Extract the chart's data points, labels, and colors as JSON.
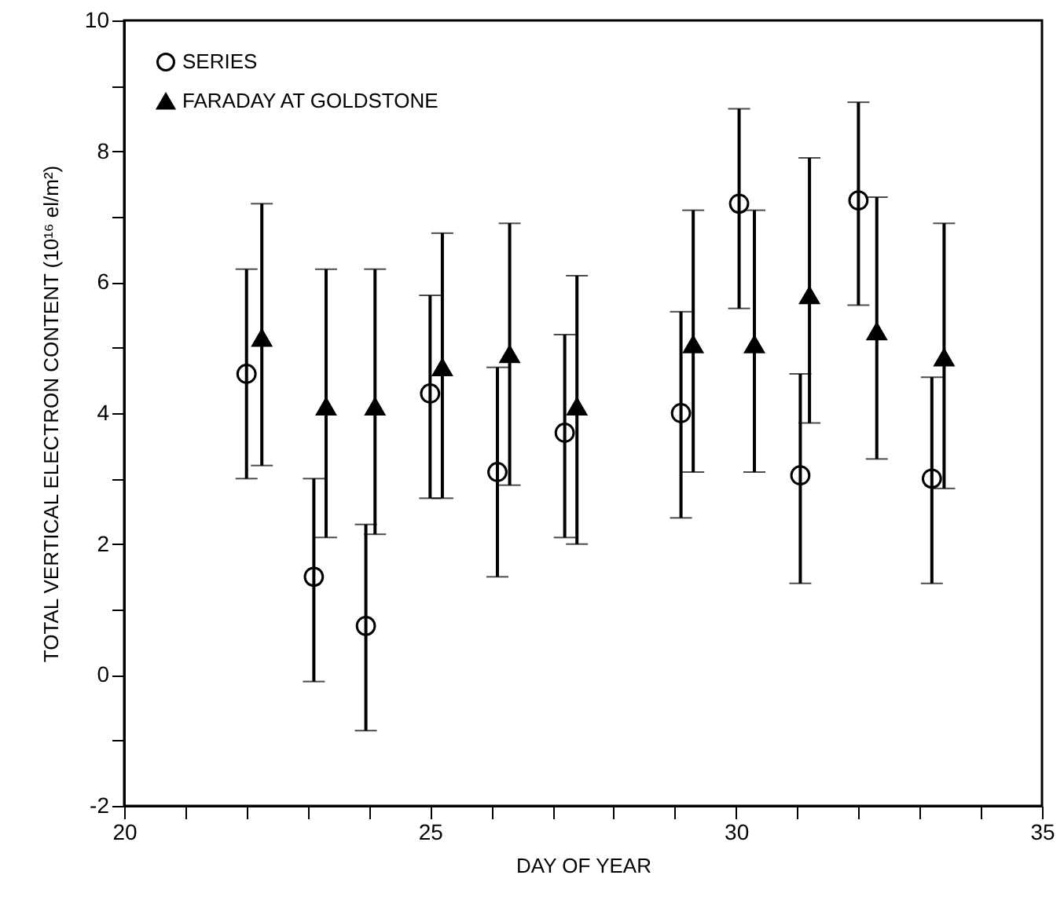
{
  "chart_data": {
    "type": "scatter",
    "xlabel": "DAY OF YEAR",
    "ylabel": "TOTAL VERTICAL ELECTRON CONTENT (10¹⁶ el/m²)",
    "xlim": [
      20,
      35
    ],
    "xticks": [
      20,
      {
        "value": 21,
        "label": null
      },
      {
        "value": 22,
        "label": null
      },
      {
        "value": 23,
        "label": null
      },
      {
        "value": 24,
        "label": null
      },
      25,
      {
        "value": 26,
        "label": null
      },
      {
        "value": 27,
        "label": null
      },
      {
        "value": 28,
        "label": null
      },
      {
        "value": 29,
        "label": null
      },
      30,
      {
        "value": 31,
        "label": null
      },
      {
        "value": 32,
        "label": null
      },
      {
        "value": 33,
        "label": null
      },
      {
        "value": 34,
        "label": null
      },
      35
    ],
    "ylim": [
      -2,
      10
    ],
    "yticks": [
      -2,
      {
        "value": -1,
        "label": null
      },
      0,
      {
        "value": 1,
        "label": null
      },
      2,
      {
        "value": 3,
        "label": null
      },
      4,
      {
        "value": 5,
        "label": null
      },
      6,
      {
        "value": 7,
        "label": null
      },
      8,
      {
        "value": 9,
        "label": null
      },
      10
    ],
    "grid": false,
    "legend": "top left",
    "series": [
      {
        "name": "SERIES",
        "color": "#000000",
        "marker": "circle",
        "x": [
          22.0,
          23.1,
          23.95,
          25.0,
          26.1,
          27.2,
          29.1,
          30.05,
          31.05,
          32.0,
          33.2
        ],
        "values": [
          4.6,
          1.5,
          0.75,
          4.3,
          3.1,
          3.7,
          4.0,
          7.2,
          3.05,
          7.25,
          3.0
        ],
        "errors": [
          [
            3.0,
            6.2
          ],
          [
            -0.1,
            3.0
          ],
          [
            -0.85,
            2.3
          ],
          [
            2.7,
            5.8
          ],
          [
            1.5,
            4.7
          ],
          [
            2.1,
            5.2
          ],
          [
            2.4,
            5.55
          ],
          [
            5.6,
            8.65
          ],
          [
            1.4,
            4.6
          ],
          [
            5.65,
            8.75
          ],
          [
            1.4,
            4.55
          ]
        ]
      },
      {
        "name": "FARADAY AT GOLDSTONE",
        "color": "#000000",
        "marker": "triangle",
        "x": [
          22.25,
          23.3,
          24.1,
          25.2,
          26.3,
          27.4,
          29.3,
          30.3,
          31.2,
          32.3,
          33.4
        ],
        "values": [
          5.15,
          4.1,
          4.1,
          4.7,
          4.9,
          4.1,
          5.05,
          5.05,
          5.8,
          5.25,
          4.85
        ],
        "errors": [
          [
            3.2,
            7.2
          ],
          [
            2.1,
            6.2
          ],
          [
            2.15,
            6.2
          ],
          [
            2.7,
            6.75
          ],
          [
            2.9,
            6.9
          ],
          [
            2.0,
            6.1
          ],
          [
            3.1,
            7.1
          ],
          [
            3.1,
            7.1
          ],
          [
            3.85,
            7.9
          ],
          [
            3.3,
            7.3
          ],
          [
            2.85,
            6.9
          ]
        ]
      }
    ]
  }
}
